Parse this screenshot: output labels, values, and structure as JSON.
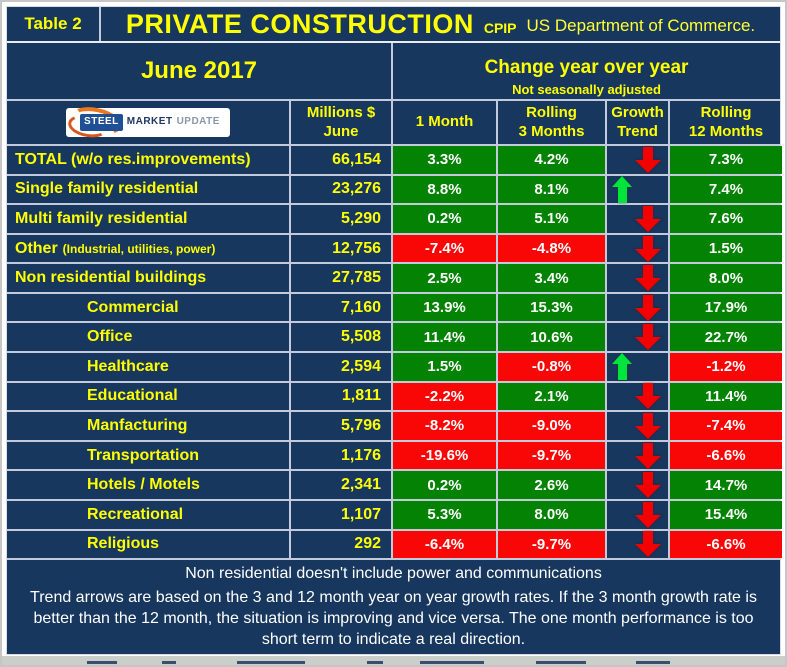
{
  "header": {
    "table_label": "Table 2",
    "title": "PRIVATE CONSTRUCTION",
    "title_suffix": "CPIP",
    "source": "US Department of Commerce.",
    "period": "June 2017",
    "change_title": "Change year over year",
    "change_subtitle": "Not seasonally adjusted"
  },
  "logo": {
    "steel": "STEEL",
    "market": "MARKET",
    "update": "UPDATE"
  },
  "columns": {
    "millions": {
      "line1": "Millions $",
      "line2": "June"
    },
    "m1": {
      "line1": "1 Month",
      "line2": ""
    },
    "m3": {
      "line1": "Rolling",
      "line2": "3 Months"
    },
    "trend": {
      "line1": "Growth",
      "line2": "Trend"
    },
    "m12": {
      "line1": "Rolling",
      "line2": "12 Months"
    }
  },
  "chart_data": {
    "type": "table",
    "title": "Private Construction (CPIP) June 2017 — Change year over year, not seasonally adjusted",
    "columns": [
      "Category",
      "Millions $ June",
      "1 Month",
      "Rolling 3 Months",
      "Growth Trend",
      "Rolling 12 Months"
    ],
    "rows": [
      {
        "label": "TOTAL (w/o res.improvements)",
        "note": "",
        "indent": false,
        "millions": "66,154",
        "m1": "3.3%",
        "m1_color": "green",
        "m3": "4.2%",
        "m3_color": "green",
        "trend": "down",
        "m12": "7.3%",
        "m12_color": "green"
      },
      {
        "label": "Single family residential",
        "note": "",
        "indent": false,
        "millions": "23,276",
        "m1": "8.8%",
        "m1_color": "green",
        "m3": "8.1%",
        "m3_color": "green",
        "trend": "up",
        "m12": "7.4%",
        "m12_color": "green"
      },
      {
        "label": "Multi family residential",
        "note": "",
        "indent": false,
        "millions": "5,290",
        "m1": "0.2%",
        "m1_color": "green",
        "m3": "5.1%",
        "m3_color": "green",
        "trend": "down",
        "m12": "7.6%",
        "m12_color": "green"
      },
      {
        "label": "Other",
        "note": "(Industrial, utilities, power)",
        "indent": false,
        "millions": "12,756",
        "m1": "-7.4%",
        "m1_color": "red",
        "m3": "-4.8%",
        "m3_color": "red",
        "trend": "down",
        "m12": "1.5%",
        "m12_color": "green"
      },
      {
        "label": "Non residential buildings",
        "note": "",
        "indent": false,
        "millions": "27,785",
        "m1": "2.5%",
        "m1_color": "green",
        "m3": "3.4%",
        "m3_color": "green",
        "trend": "down",
        "m12": "8.0%",
        "m12_color": "green"
      },
      {
        "label": "Commercial",
        "note": "",
        "indent": true,
        "millions": "7,160",
        "m1": "13.9%",
        "m1_color": "green",
        "m3": "15.3%",
        "m3_color": "green",
        "trend": "down",
        "m12": "17.9%",
        "m12_color": "green"
      },
      {
        "label": "Office",
        "note": "",
        "indent": true,
        "millions": "5,508",
        "m1": "11.4%",
        "m1_color": "green",
        "m3": "10.6%",
        "m3_color": "green",
        "trend": "down",
        "m12": "22.7%",
        "m12_color": "green"
      },
      {
        "label": "Healthcare",
        "note": "",
        "indent": true,
        "millions": "2,594",
        "m1": "1.5%",
        "m1_color": "green",
        "m3": "-0.8%",
        "m3_color": "red",
        "trend": "up",
        "m12": "-1.2%",
        "m12_color": "red"
      },
      {
        "label": "Educational",
        "note": "",
        "indent": true,
        "millions": "1,811",
        "m1": "-2.2%",
        "m1_color": "red",
        "m3": "2.1%",
        "m3_color": "green",
        "trend": "down",
        "m12": "11.4%",
        "m12_color": "green"
      },
      {
        "label": "Manfacturing",
        "note": "",
        "indent": true,
        "millions": "5,796",
        "m1": "-8.2%",
        "m1_color": "red",
        "m3": "-9.0%",
        "m3_color": "red",
        "trend": "down",
        "m12": "-7.4%",
        "m12_color": "red"
      },
      {
        "label": "Transportation",
        "note": "",
        "indent": true,
        "millions": "1,176",
        "m1": "-19.6%",
        "m1_color": "red",
        "m3": "-9.7%",
        "m3_color": "red",
        "trend": "down",
        "m12": "-6.6%",
        "m12_color": "red"
      },
      {
        "label": "Hotels / Motels",
        "note": "",
        "indent": true,
        "millions": "2,341",
        "m1": "0.2%",
        "m1_color": "green",
        "m3": "2.6%",
        "m3_color": "green",
        "trend": "down",
        "m12": "14.7%",
        "m12_color": "green"
      },
      {
        "label": "Recreational",
        "note": "",
        "indent": true,
        "millions": "1,107",
        "m1": "5.3%",
        "m1_color": "green",
        "m3": "8.0%",
        "m3_color": "green",
        "trend": "down",
        "m12": "15.4%",
        "m12_color": "green"
      },
      {
        "label": "Religious",
        "note": "",
        "indent": true,
        "millions": "292",
        "m1": "-6.4%",
        "m1_color": "red",
        "m3": "-9.7%",
        "m3_color": "red",
        "trend": "down",
        "m12": "-6.6%",
        "m12_color": "red"
      }
    ]
  },
  "footnotes": {
    "line1": "Non residential doesn't include power and communications",
    "paragraph": "Trend arrows are based on the 3 and 12 month year on year growth rates. If the 3 month growth rate is better than the 12 month, the situation is improving and vice versa. The one month performance is too short term to indicate a real direction."
  },
  "colors": {
    "navy_background": "#17375E",
    "positive_cell_green": "#038203",
    "negative_cell_red": "#F90606",
    "label_yellow": "#FFFF00",
    "value_white": "#FFFFFF",
    "gridline": "#C2CADB",
    "up_arrow_green": "#00E43B",
    "down_arrow_red": "#F40000",
    "logo_orange": "#E87722",
    "logo_blue": "#1F5096"
  }
}
